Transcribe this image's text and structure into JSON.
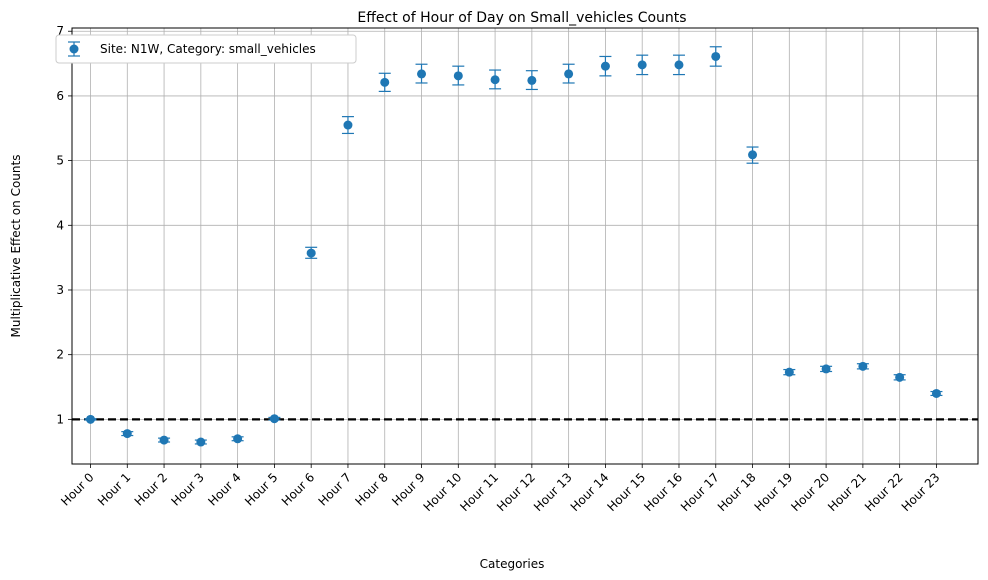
{
  "chart_data": {
    "type": "scatter",
    "title": "Effect of Hour of Day on Small_vehicles Counts",
    "xlabel": "Categories",
    "ylabel": "Multiplicative Effect on Counts",
    "categories": [
      "Hour 0",
      "Hour 1",
      "Hour 2",
      "Hour 3",
      "Hour 4",
      "Hour 5",
      "Hour 6",
      "Hour 7",
      "Hour 8",
      "Hour 9",
      "Hour 10",
      "Hour 11",
      "Hour 12",
      "Hour 13",
      "Hour 14",
      "Hour 15",
      "Hour 16",
      "Hour 17",
      "Hour 18",
      "Hour 19",
      "Hour 20",
      "Hour 21",
      "Hour 22",
      "Hour 23"
    ],
    "series": [
      {
        "name": "Site: N1W, Category: small_vehicles",
        "color": "#1f77b4",
        "values": [
          1.0,
          0.78,
          0.68,
          0.65,
          0.7,
          1.01,
          3.57,
          5.55,
          6.21,
          6.34,
          6.31,
          6.25,
          6.24,
          6.34,
          6.46,
          6.48,
          6.48,
          6.61,
          5.09,
          1.73,
          1.78,
          1.82,
          1.65,
          1.4
        ],
        "err_low": [
          0.99,
          0.75,
          0.65,
          0.62,
          0.67,
          0.99,
          3.49,
          5.42,
          6.07,
          6.2,
          6.17,
          6.11,
          6.1,
          6.2,
          6.31,
          6.33,
          6.33,
          6.46,
          4.96,
          1.69,
          1.74,
          1.78,
          1.61,
          1.37
        ],
        "err_high": [
          1.01,
          0.81,
          0.71,
          0.68,
          0.73,
          1.03,
          3.66,
          5.68,
          6.35,
          6.49,
          6.46,
          6.4,
          6.39,
          6.49,
          6.61,
          6.63,
          6.63,
          6.76,
          5.21,
          1.77,
          1.82,
          1.86,
          1.69,
          1.43
        ]
      }
    ],
    "reference_line": {
      "y": 1,
      "style": "dashed",
      "color": "#000000"
    },
    "yticks": [
      1,
      2,
      3,
      4,
      5,
      6,
      7
    ],
    "ylim": [
      0.31,
      7.05
    ],
    "grid": true,
    "legend_position": "upper-left"
  }
}
